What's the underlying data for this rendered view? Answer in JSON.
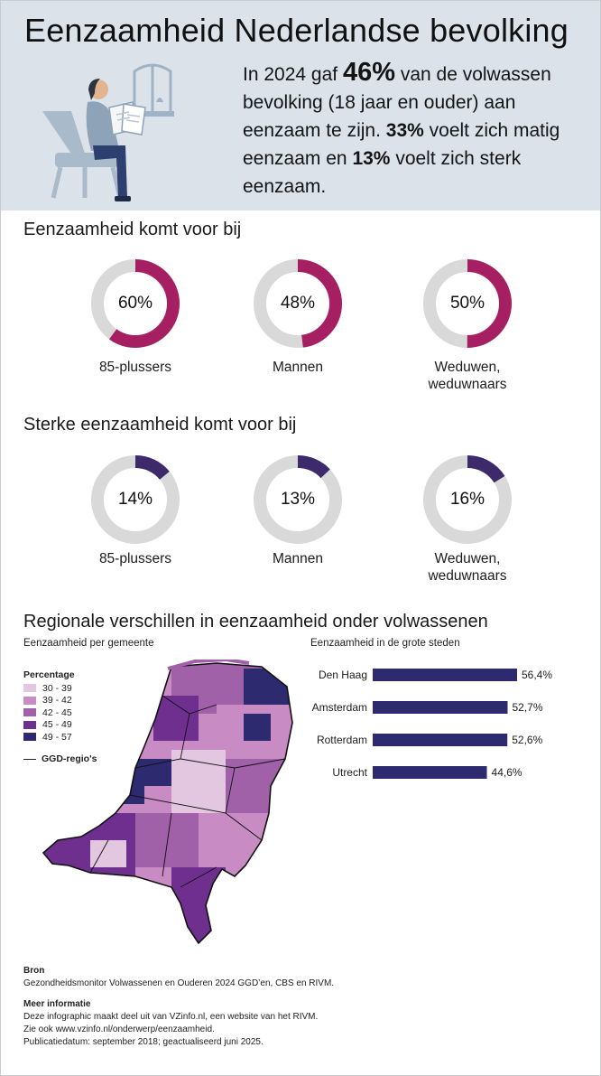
{
  "header": {
    "title": "Eenzaamheid Nederlandse bevolking",
    "intro_pre": "In 2024 gaf",
    "intro_pct": "46%",
    "intro_mid1": "van de volwassen bevolking (18 jaar en ouder) aan eenzaam te zijn.",
    "intro_moderate": "33%",
    "intro_mid2": "voelt zich matig eenzaam en",
    "intro_strong": "13%",
    "intro_end": "voelt zich sterk eenzaam."
  },
  "loneliness": {
    "title": "Eenzaamheid komt voor bij",
    "color": "#a61f62",
    "items": [
      {
        "pct_text": "60%",
        "value": 60,
        "label": "85-plussers"
      },
      {
        "pct_text": "48%",
        "value": 48,
        "label": "Mannen"
      },
      {
        "pct_text": "50%",
        "value": 50,
        "label": "Weduwen, weduwnaars"
      }
    ]
  },
  "strong_loneliness": {
    "title": "Sterke eenzaamheid komt voor bij",
    "color": "#3d2a6b",
    "items": [
      {
        "pct_text": "14%",
        "value": 14,
        "label": "85-plussers"
      },
      {
        "pct_text": "13%",
        "value": 13,
        "label": "Mannen"
      },
      {
        "pct_text": "16%",
        "value": 16,
        "label": "Weduwen, weduwnaars"
      }
    ]
  },
  "regional": {
    "title": "Regionale verschillen in eenzaamheid onder volwassenen",
    "map_title": "Eenzaamheid per gemeente",
    "legend_title": "Percentage",
    "legend": [
      {
        "label": "30 - 39",
        "color": "#e3c6e0"
      },
      {
        "label": "39 - 42",
        "color": "#c98bc3"
      },
      {
        "label": "42 - 45",
        "color": "#a061a8"
      },
      {
        "label": "45 - 49",
        "color": "#6e2f8f"
      },
      {
        "label": "49 - 57",
        "color": "#2e2a70"
      }
    ],
    "ggd_label": "GGD-regio's"
  },
  "chart_data": {
    "type": "bar",
    "title": "Eenzaamheid in de grote steden",
    "orientation": "horizontal",
    "categories": [
      "Den Haag",
      "Amsterdam",
      "Rotterdam",
      "Utrecht"
    ],
    "values": [
      56.4,
      52.7,
      52.6,
      44.6
    ],
    "value_labels": [
      "56,4%",
      "52,7%",
      "52,6%",
      "44,6%"
    ],
    "color": "#2e2a70"
  },
  "footer": {
    "source_head": "Bron",
    "source_text": "Gezondheidsmonitor Volwassenen en Ouderen 2024 GGD’en, CBS en RIVM.",
    "info_head": "Meer informatie",
    "info_line1": "Deze infographic maakt deel uit van VZinfo.nl, een website van het RIVM.",
    "info_line2": "Zie ook www.vzinfo.nl/onderwerp/eenzaamheid.",
    "info_line3": "Publicatiedatum: september 2018; geactualiseerd juni 2025."
  }
}
